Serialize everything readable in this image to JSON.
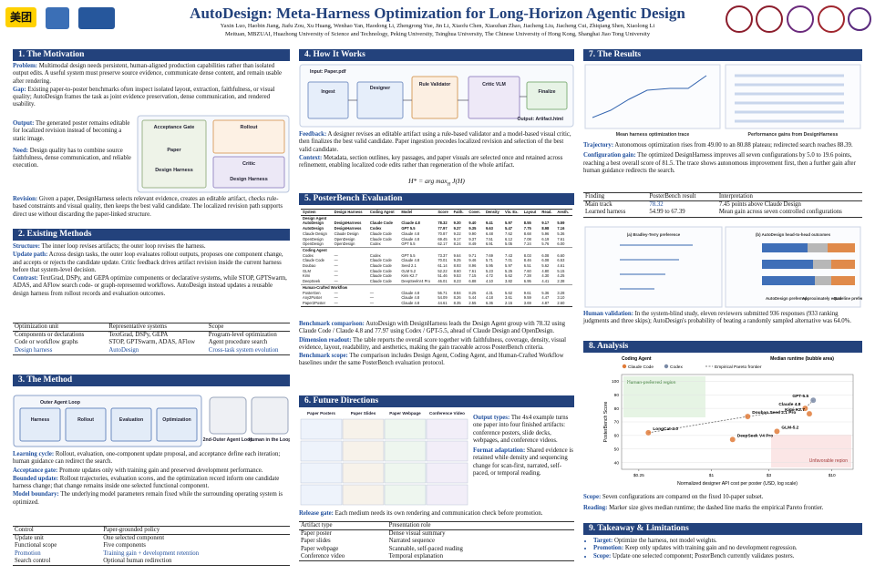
{
  "header": {
    "logo": "美团",
    "title": "AutoDesign: Meta-Harness Optimization for Long-Horizon Agentic Design",
    "authors": "Yaxin Luo, Haobin Jiang, Jiafu Zou, Xu Huang, Wenhao Yan, Haodong Li, Zhengrong Yue, Jin Li, Xiaofu Chen, Xiaozhan Zhao, Jiacheng Liu, Jiacheng Cui, Zhiqiang Shen, Xiaolong Li",
    "affiliations": "Meituan, MBZUAI, Huazhong University of Science and Technology, Peking University, Tsinghua University, The Chinese University of Hong Kong, Shanghai Jiao Tong University"
  },
  "motivation": {
    "title": "1. The Motivation",
    "problem": {
      "lead": "Problem:",
      "text": "Multimodal design needs persistent, human-aligned production capabilities rather than isolated output edits. A useful system must preserve source evidence, communicate dense content, and remain usable after rendering."
    },
    "gap": {
      "lead": "Gap:",
      "text": "Existing paper-to-poster benchmarks often inspect isolated layout, extraction, faithfulness, or visual quality; AutoDesign frames the task as joint evidence preservation, dense communication, and rendered usability."
    },
    "output": {
      "lead": "Output:",
      "text": "The generated poster remains editable for localized revision instead of becoming a static image."
    },
    "need": {
      "lead": "Need:",
      "text": "Design quality has to combine source faithfulness, dense communication, and reliable execution."
    },
    "figure_labels": [
      "Acceptance Gate",
      "Paper",
      "Design Harness",
      "Rollout",
      "Critic",
      "Design Harness"
    ],
    "revision": {
      "lead": "Revision:",
      "text": "Given a paper, DesignHarness selects relevant evidence, creates an editable artifact, checks rule-based constraints and visual quality, then keeps the best valid candidate. The localized revision path supports direct use without discarding the paper-linked structure."
    }
  },
  "existing": {
    "title": "2. Existing Methods",
    "structure": {
      "lead": "Structure:",
      "text": "The inner loop revises artifacts; the outer loop revises the harness."
    },
    "update_path": {
      "lead": "Update path:",
      "text": "Across design tasks, the outer loop evaluates rollout outputs, proposes one component change, and accepts or rejects the candidate update. Critic feedback drives artifact revision inside the current harness before that system-level decision."
    },
    "contrast": {
      "lead": "Contrast:",
      "text": "TextGrad, DSPy, and GEPA optimize components or declarative systems, while STOP, GPTSwarm, ADAS, and AFlow search code- or graph-represented workflows. AutoDesign instead updates a reusable design harness from rollout records and evaluation outcomes."
    },
    "table": {
      "header": [
        "Optimization unit",
        "Representative systems",
        "Scope"
      ],
      "rows": [
        [
          "Components or declarations",
          "TextGrad, DSPy, GEPA",
          "Program-level optimization"
        ],
        [
          "Code or workflow graphs",
          "STOP, GPTSwarm, ADAS, AFlow",
          "Agent procedure search"
        ],
        [
          "Design harness",
          "AutoDesign",
          "Cross-task system evolution"
        ]
      ]
    }
  },
  "method": {
    "title": "3. The Method",
    "figure_labels": [
      "Outer Agent Loop",
      "Harness",
      "Rollout",
      "Evaluation",
      "Optimization",
      "2nd-Outer Agent Loop",
      "Human in the Loop"
    ],
    "learning_cycle": {
      "lead": "Learning cycle:",
      "text": "Rollout, evaluation, one-component update proposal, and acceptance define each iteration; human guidance can redirect the search."
    },
    "acceptance_gate": {
      "lead": "Acceptance gate:",
      "text": "Promote updates only with training gain and preserved development performance."
    },
    "bounded_update": {
      "lead": "Bounded update:",
      "text": "Rollout trajectories, evaluation scores, and the optimization record inform one candidate harness change; that change remains inside one selected functional component."
    },
    "model_boundary": {
      "lead": "Model boundary:",
      "text": "The underlying model parameters remain fixed while the surrounding operating system is optimized."
    },
    "table": {
      "rows": [
        [
          "Control",
          "Paper-grounded policy"
        ],
        [
          "Update unit",
          "One selected component"
        ],
        [
          "Functional scope",
          "Five components"
        ],
        [
          "Promotion",
          "Training gain + development retention"
        ],
        [
          "Search control",
          "Optional human redirection"
        ]
      ]
    }
  },
  "how": {
    "title": "4. How It Works",
    "figure_labels": [
      "Input: Paper.pdf",
      "Ingest",
      "Designer",
      "Rule Validator",
      "Critic VLM",
      "Finalize",
      "Output: Artifact.html"
    ],
    "feedback": {
      "lead": "Feedback:",
      "text": "A designer revises an editable artifact using a rule-based validator and a model-based visual critic, then finalizes the best valid candidate. Paper ingestion precedes localized revision and selection of the best valid candidate."
    },
    "context": {
      "lead": "Context:",
      "text": "Metadata, section outlines, key passages, and paper visuals are selected once and retained across refinement, enabling localized code edits rather than regeneration of the whole artifact."
    },
    "formula": {
      "lhs": "H* = arg max",
      "sub": "H",
      "rhs": "J(H)"
    }
  },
  "posterbench": {
    "title": "5. PosterBench Evaluation",
    "columns": [
      "System",
      "Design Harness",
      "Coding Agent",
      "Model",
      "Score",
      "Faith.",
      "Cover.",
      "Density",
      "Vis. Ex.",
      "Layout",
      "Read.",
      "Aesth."
    ],
    "groups": [
      {
        "name": "Design Agent",
        "rows": [
          [
            "AutoDesign",
            "DesignHarness",
            "Claude Code",
            "Claude 4.8",
            "78.32",
            "9.30",
            "9.40",
            "9.41",
            "5.97",
            "8.55",
            "9.17",
            "5.59"
          ],
          [
            "AutoDesign",
            "DesignHarness",
            "Codex",
            "GPT 5.5",
            "77.97",
            "9.37",
            "9.35",
            "9.63",
            "5.47",
            "7.75",
            "8.98",
            "7.16"
          ],
          [
            "Claude Design",
            "Claude Design",
            "Claude Code",
            "Claude 4.8",
            "70.87",
            "9.22",
            "9.90",
            "6.48",
            "7.62",
            "8.68",
            "5.96",
            "5.36"
          ],
          [
            "OpenDesign",
            "OpenDesign",
            "Claude Code",
            "Claude 4.8",
            "69.45",
            "9.17",
            "9.37",
            "7.51",
            "6.12",
            "7.08",
            "6.19",
            "7.61"
          ],
          [
            "OpenDesign",
            "OpenDesign",
            "Codex",
            "GPT 5.5",
            "62.17",
            "8.24",
            "8.49",
            "6.91",
            "5.05",
            "7.24",
            "5.76",
            "6.00"
          ]
        ]
      },
      {
        "name": "Coding Agent",
        "rows": [
          [
            "Codex",
            "—",
            "Codex",
            "GPT 5.5",
            "73.37",
            "9.64",
            "9.71",
            "7.69",
            "7.43",
            "8.03",
            "6.08",
            "6.60"
          ],
          [
            "Claude Code",
            "—",
            "Claude Code",
            "Claude 4.8",
            "70.01",
            "9.25",
            "9.46",
            "5.71",
            "7.01",
            "8.46",
            "6.08",
            "6.53"
          ],
          [
            "Doubao",
            "—",
            "Claude Code",
            "Seed 2.1",
            "61.14",
            "8.93",
            "8.96",
            "5.95",
            "5.97",
            "6.51",
            "5.62",
            "4.61"
          ],
          [
            "GLM",
            "—",
            "Claude Code",
            "GLM 5.2",
            "52.22",
            "8.60",
            "7.61",
            "5.23",
            "5.25",
            "7.60",
            "4.80",
            "5.15"
          ],
          [
            "Kimi",
            "—",
            "Claude Code",
            "Kimi K2.7",
            "51.46",
            "9.53",
            "7.15",
            "4.72",
            "5.62",
            "7.28",
            "4.30",
            "4.25"
          ],
          [
            "DeepSeek",
            "—",
            "Claude Code",
            "DeepSeekV4 Pro",
            "46.01",
            "8.23",
            "6.88",
            "4.10",
            "3.82",
            "6.95",
            "4.41",
            "2.38"
          ]
        ]
      },
      {
        "name": "Human-Crafted Workflow",
        "rows": [
          [
            "PosterGen",
            "—",
            "—",
            "Claude 4.8",
            "56.71",
            "8.84",
            "8.25",
            "4.31",
            "5.62",
            "9.61",
            "5.36",
            "3.28"
          ],
          [
            "Any2Poster",
            "—",
            "—",
            "Claude 4.8",
            "54.09",
            "8.26",
            "5.44",
            "4.18",
            "3.61",
            "9.59",
            "4.47",
            "3.10"
          ],
          [
            "Paper2Poster",
            "—",
            "—",
            "Claude 4.8",
            "44.61",
            "8.35",
            "2.55",
            "6.36",
            "2.15",
            "3.69",
            "4.87",
            "2.60"
          ]
        ]
      }
    ],
    "benchmark_comparison": {
      "lead": "Benchmark comparison:",
      "text": "AutoDesign with DesignHarness leads the Design Agent group with 78.32 using Claude Code / Claude 4.8 and 77.97 using Codex / GPT-5.5, ahead of Claude Design and OpenDesign."
    },
    "dimension_readout": {
      "lead": "Dimension readout:",
      "text": "The table reports the overall score together with faithfulness, coverage, density, visual evidence, layout, readability, and aesthetics, making the gain traceable across PosterBench criteria."
    },
    "benchmark_scope": {
      "lead": "Benchmark scope:",
      "text": "The comparison includes Design Agent, Coding Agent, and Human-Crafted Workflow baselines under the same PosterBench evaluation protocol."
    }
  },
  "future": {
    "title": "6. Future Directions",
    "figure_labels": [
      "Paper Posters",
      "Paper Slides",
      "Paper Webpage",
      "Conference Video"
    ],
    "output_types": {
      "lead": "Output types:",
      "text": "The 4x4 example turns one paper into four finished artifacts: conference posters, slide decks, webpages, and conference videos."
    },
    "format_adaptation": {
      "lead": "Format adaptation:",
      "text": "Shared evidence is retained while density and sequencing change for scan-first, narrated, self-paced, or temporal reading."
    },
    "release_gate": {
      "lead": "Release gate:",
      "text": "Each medium needs its own rendering and communication check before promotion."
    },
    "table": {
      "header": [
        "Artifact type",
        "Presentation role"
      ],
      "rows": [
        [
          "Paper poster",
          "Dense visual summary"
        ],
        [
          "Paper slides",
          "Narrated sequence"
        ],
        [
          "Paper webpage",
          "Scannable, self-paced reading"
        ],
        [
          "Conference video",
          "Temporal explanation"
        ]
      ]
    }
  },
  "results": {
    "title": "7. The Results",
    "figure_captions": [
      "Mean harness optimization trace",
      "Performance gains from DesignHarness"
    ],
    "trajectory": {
      "lead": "Trajectory:",
      "text": "Autonomous optimization rises from 49.00 to an 80.88 plateau; redirected search reaches 88.39."
    },
    "configuration_gain": {
      "lead": "Configuration gain:",
      "text": "The optimized DesignHarness improves all seven configurations by 5.0 to 19.6 points, reaching a best overall score of 81.5. The trace shows autonomous improvement first, then a further gain after human guidance redirects the search."
    },
    "table": {
      "header": [
        "Finding",
        "PosterBench result",
        "Interpretation"
      ],
      "rows": [
        [
          "Main track",
          "78.32",
          "7.45 points above Claude Design"
        ],
        [
          "Learned harness",
          "54.99 to 67.39",
          "Mean gain across seven controlled configurations"
        ]
      ]
    },
    "human_figure_labels": [
      "(a) Bradley-Terry preference",
      "(b) AutoDesign head-to-head outcomes",
      "AutoDesign preferred",
      "Approximately equal",
      "Baseline preferred"
    ],
    "human_validation": {
      "lead": "Human validation:",
      "text": "In the system-blind study, eleven reviewers submitted 936 responses (933 ranking judgments and three skips); AutoDesign's probability of beating a randomly sampled alternative was 64.0%."
    }
  },
  "analysis": {
    "title": "8. Analysis",
    "chart": {
      "legend_title": "Coding Agent",
      "legend": [
        "Claude Code",
        "Codex",
        "Empirical Pareto frontier"
      ],
      "size_title": "Median runtime (bubble area)",
      "region_good": "Human-preferred region",
      "region_bad": "Unfavorable region",
      "ylabel": "PosterBench Score",
      "xlabel": "Normalized designer API cost per poster (USD, log scale)",
      "ylim": [
        35,
        105
      ],
      "yticks": [
        40,
        50,
        60,
        70,
        80,
        90,
        100
      ],
      "xlim": [
        0.18,
        15
      ],
      "xticks": [
        {
          "value": 0.25,
          "label": "$0.25"
        },
        {
          "value": 1,
          "label": "$1"
        },
        {
          "value": 3,
          "label": "$3"
        },
        {
          "value": 10,
          "label": "$10"
        }
      ],
      "points": [
        {
          "name": "GPT-5.5",
          "agent": "Codex",
          "x": 7,
          "y": 86
        },
        {
          "name": "Claude 4.8",
          "agent": "Claude Code",
          "x": 6,
          "y": 80
        },
        {
          "name": "Kimi K2.7",
          "agent": "Claude Code",
          "x": 6.5,
          "y": 76
        },
        {
          "name": "Doubao Seed 2.1 Pro",
          "agent": "Claude Code",
          "x": 2,
          "y": 74
        },
        {
          "name": "GLM-5.2",
          "agent": "Claude Code",
          "x": 3.5,
          "y": 63
        },
        {
          "name": "DeepSeek V4 Pro",
          "agent": "Claude Code",
          "x": 1.5,
          "y": 57
        },
        {
          "name": "LongCat-2.0",
          "agent": "Claude Code",
          "x": 0.3,
          "y": 62
        }
      ],
      "colors": {
        "Claude Code": "#e07b39",
        "Codex": "#7a8aa6"
      }
    },
    "scope": {
      "lead": "Scope:",
      "text": "Seven configurations are compared on the fixed 10-paper subset."
    },
    "reading": {
      "lead": "Reading:",
      "text": "Marker size gives median runtime; the dashed line marks the empirical Pareto frontier."
    }
  },
  "takeaway": {
    "title": "9. Takeaway & Limitations",
    "bullets": [
      {
        "lead": "Target:",
        "text": "Optimize the harness, not model weights."
      },
      {
        "lead": "Promotion:",
        "text": "Keep only updates with training gain and no development regression."
      },
      {
        "lead": "Scope:",
        "text": "Update one selected component; PosterBench currently validates posters."
      }
    ]
  }
}
